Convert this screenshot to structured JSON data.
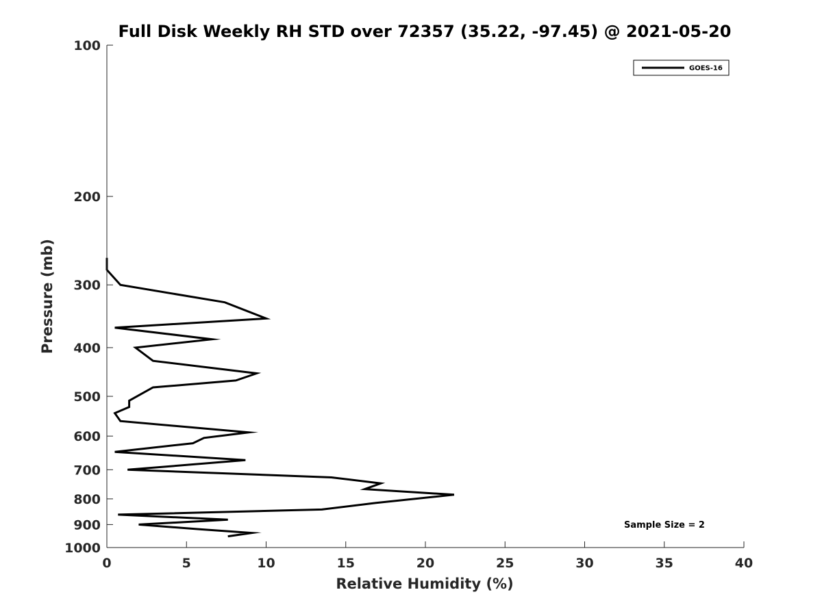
{
  "chart_data": {
    "type": "line",
    "title": "Full Disk Weekly RH STD over 72357 (35.22, -97.45) @ 2021-05-20",
    "xlabel": "Relative Humidity (%)",
    "ylabel": "Pressure (mb)",
    "xlim": [
      0,
      40
    ],
    "ylim": [
      100,
      1000
    ],
    "y_scale": "log",
    "y_reversed": true,
    "x_ticks": [
      0,
      5,
      10,
      15,
      20,
      25,
      30,
      35,
      40
    ],
    "x_tick_labels": [
      "0",
      "5",
      "10",
      "15",
      "20",
      "25",
      "30",
      "35",
      "40"
    ],
    "y_ticks": [
      100,
      200,
      300,
      400,
      500,
      600,
      700,
      800,
      900,
      1000
    ],
    "y_tick_labels": [
      "100",
      "200",
      "300",
      "400",
      "500",
      "600",
      "700",
      "800",
      "900",
      "1000"
    ],
    "grid": false,
    "legend_position": "top-right",
    "annotation": "Sample Size = 2",
    "series": [
      {
        "name": "GOES-16",
        "color": "#000000",
        "points": [
          [
            0.0,
            265
          ],
          [
            0.0,
            280
          ],
          [
            0.85,
            300
          ],
          [
            7.4,
            325
          ],
          [
            10.0,
            350
          ],
          [
            0.5,
            365
          ],
          [
            6.6,
            385
          ],
          [
            1.8,
            400
          ],
          [
            2.9,
            425
          ],
          [
            9.4,
            450
          ],
          [
            8.1,
            465
          ],
          [
            2.9,
            480
          ],
          [
            1.4,
            510
          ],
          [
            1.4,
            525
          ],
          [
            0.5,
            540
          ],
          [
            0.85,
            560
          ],
          [
            8.9,
            590
          ],
          [
            6.1,
            605
          ],
          [
            5.4,
            620
          ],
          [
            0.5,
            645
          ],
          [
            8.7,
            670
          ],
          [
            1.3,
            700
          ],
          [
            14.1,
            725
          ],
          [
            17.2,
            745
          ],
          [
            16.2,
            765
          ],
          [
            21.8,
            785
          ],
          [
            16.9,
            815
          ],
          [
            13.5,
            840
          ],
          [
            0.7,
            860
          ],
          [
            7.6,
            880
          ],
          [
            2.0,
            900
          ],
          [
            5.9,
            920
          ],
          [
            9.1,
            935
          ],
          [
            7.6,
            950
          ]
        ]
      }
    ]
  }
}
